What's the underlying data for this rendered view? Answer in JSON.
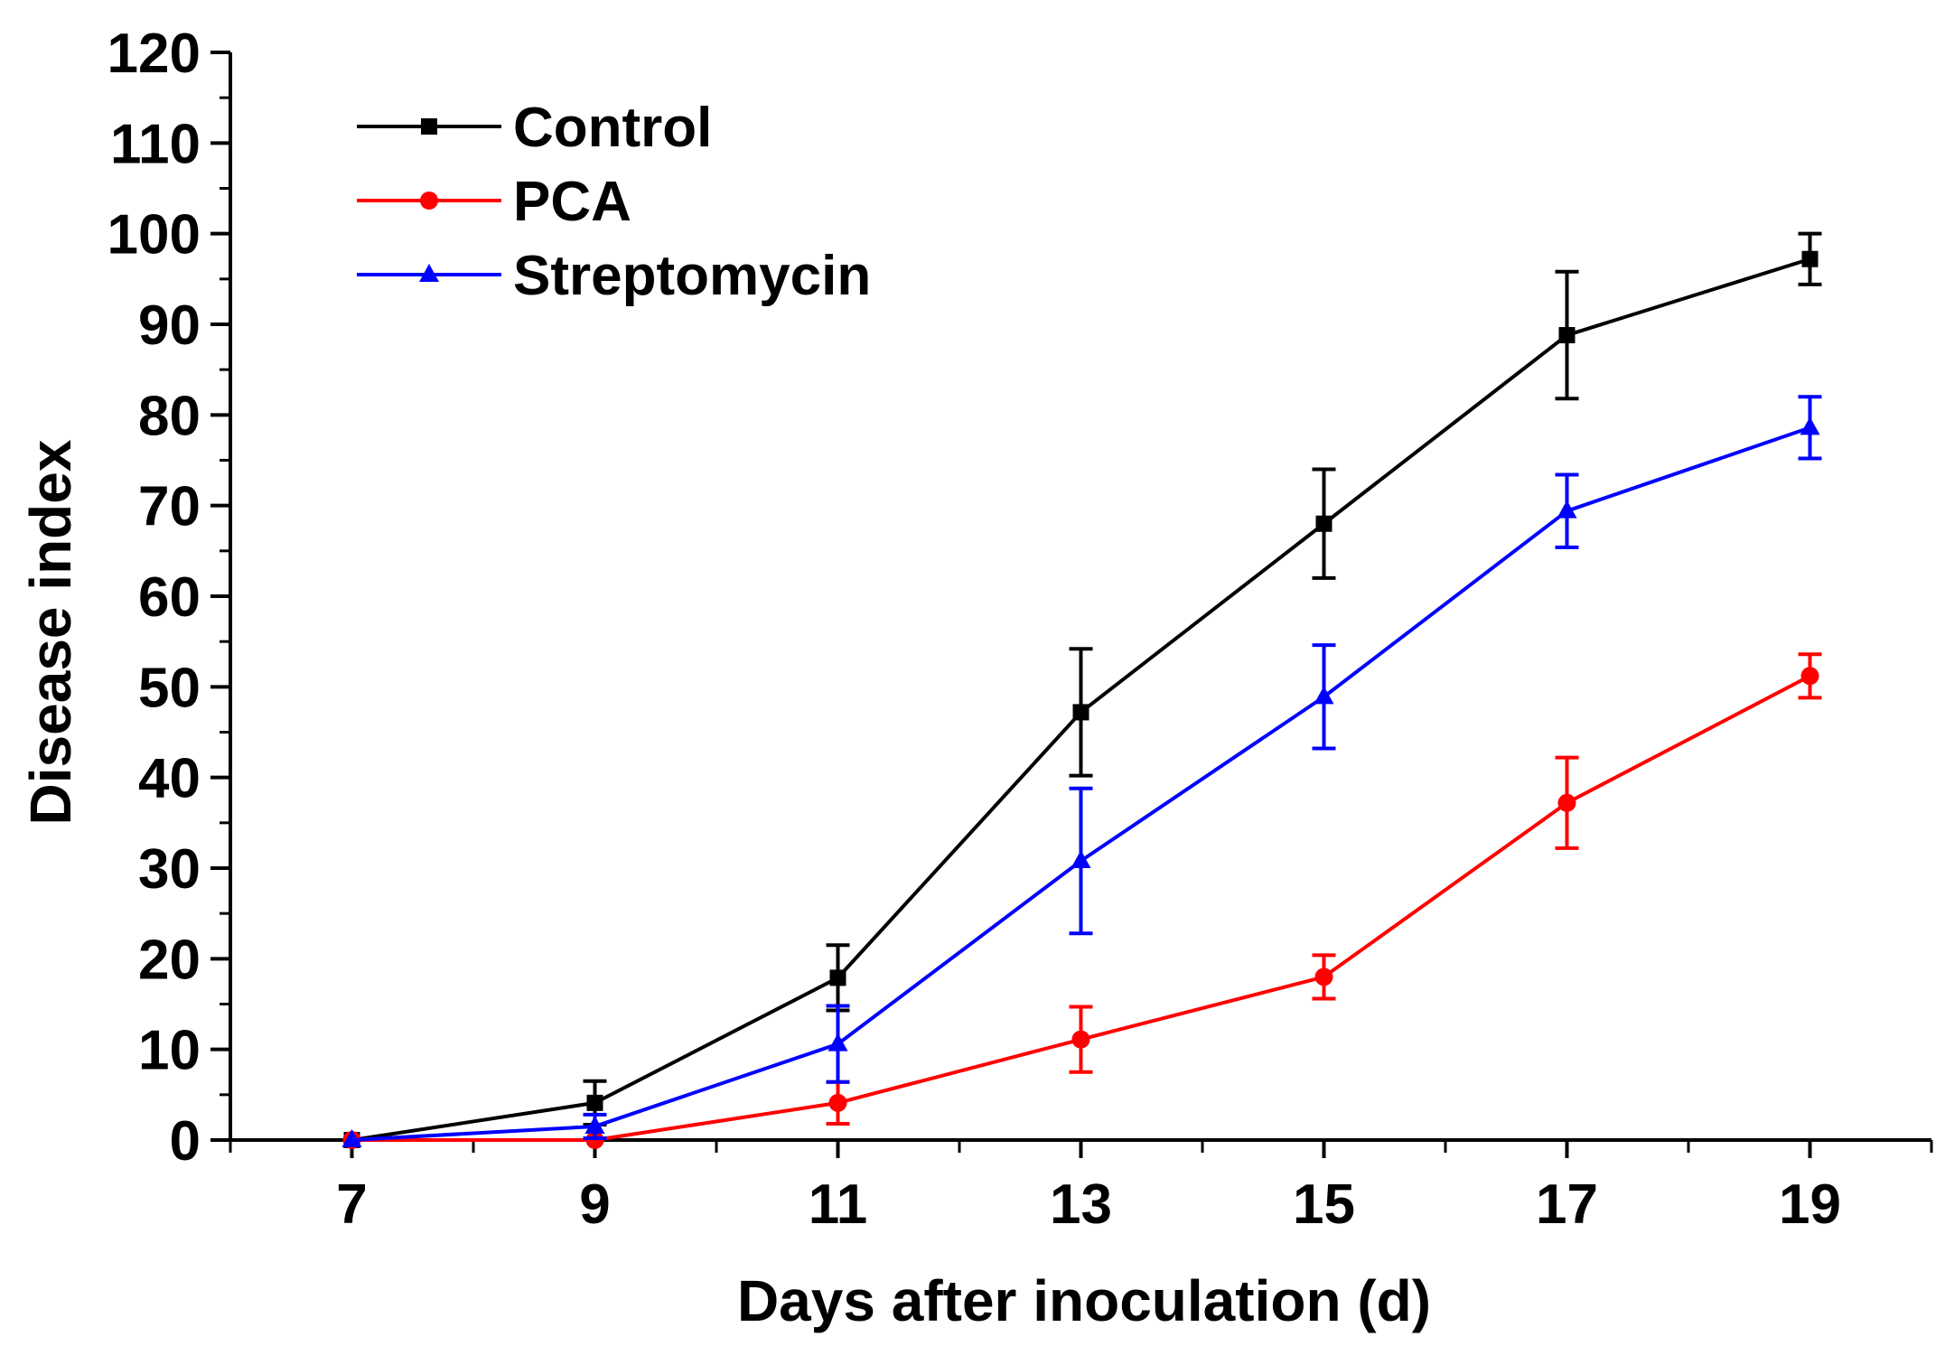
{
  "chart_data": {
    "type": "line",
    "title": "",
    "xlabel": "Days after inoculation (d)",
    "ylabel": "Disease index",
    "xlim": [
      6,
      20
    ],
    "ylim": [
      0,
      120
    ],
    "x_ticks": [
      7,
      9,
      11,
      13,
      15,
      17,
      19
    ],
    "y_ticks": [
      0,
      10,
      20,
      30,
      40,
      50,
      60,
      70,
      80,
      90,
      100,
      110,
      120
    ],
    "grid": false,
    "legend_position": "top-left",
    "x": [
      7,
      9,
      11,
      13,
      15,
      17,
      19
    ],
    "series": [
      {
        "name": "Control",
        "color": "#000000",
        "marker": "square",
        "values": [
          0,
          4.1,
          17.9,
          47.2,
          68.0,
          88.8,
          97.2
        ],
        "errors": [
          0,
          2.4,
          3.6,
          7.0,
          6.0,
          7.0,
          2.8
        ]
      },
      {
        "name": "PCA",
        "color": "#ff0000",
        "marker": "circle",
        "values": [
          0,
          0,
          4.1,
          11.1,
          18.0,
          37.2,
          51.2
        ],
        "errors": [
          0,
          0,
          2.3,
          3.6,
          2.4,
          5.0,
          2.4
        ]
      },
      {
        "name": "Streptomycin",
        "color": "#0000ff",
        "marker": "triangle",
        "values": [
          0,
          1.5,
          10.6,
          30.8,
          48.9,
          69.4,
          78.6
        ],
        "errors": [
          0,
          1.3,
          4.2,
          8.0,
          5.7,
          4.0,
          3.4
        ]
      }
    ]
  }
}
